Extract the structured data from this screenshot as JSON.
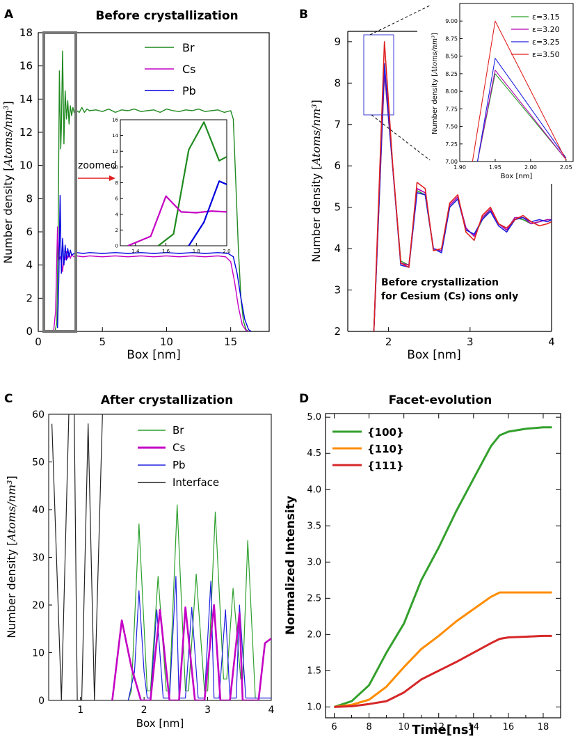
{
  "chart_data": [
    {
      "panel": "A",
      "type": "line",
      "title": "Before crystallization",
      "xlabel": "Box [nm]",
      "ylabel": "Number density [Atoms/nm³]",
      "xlim": [
        0,
        18
      ],
      "ylim": [
        0,
        18
      ],
      "xticks": [
        0,
        5,
        10,
        15
      ],
      "yticks": [
        0,
        2,
        4,
        6,
        8,
        10,
        12,
        14,
        16,
        18
      ],
      "legend": "top-center",
      "series": [
        {
          "name": "Br",
          "color": "#1f8a1f",
          "x": [
            1.3,
            1.45,
            1.55,
            1.65,
            1.75,
            1.8,
            1.9,
            2.0,
            2.1,
            2.2,
            2.3,
            2.4,
            2.5,
            2.6,
            2.7,
            2.8,
            2.9,
            3.0,
            3.2,
            3.4,
            3.6,
            3.8,
            4,
            4.5,
            5,
            5.5,
            6,
            6.5,
            7,
            7.5,
            8,
            8.5,
            9,
            9.5,
            10,
            10.5,
            11,
            11.5,
            12,
            12.5,
            13,
            13.5,
            14,
            14.5,
            15,
            15.2,
            15.4,
            15.6,
            15.8,
            16.0,
            16.2,
            16.4
          ],
          "y": [
            0,
            0.5,
            6.0,
            15.7,
            11.0,
            12.2,
            16.9,
            11.3,
            14.5,
            12.8,
            13.9,
            12.5,
            13.6,
            13.0,
            13.5,
            13.2,
            13.4,
            13.3,
            13.2,
            13.5,
            13.2,
            13.4,
            13.3,
            13.35,
            13.25,
            13.4,
            13.2,
            13.35,
            13.3,
            13.4,
            13.25,
            13.3,
            13.35,
            13.2,
            13.4,
            13.3,
            13.25,
            13.35,
            13.3,
            13.4,
            13.25,
            13.3,
            13.35,
            13.2,
            13.3,
            12.8,
            9.0,
            5.0,
            2.0,
            0.6,
            0.1,
            0
          ]
        },
        {
          "name": "Cs",
          "color": "#c400c4",
          "x": [
            1.2,
            1.35,
            1.5,
            1.6,
            1.7,
            1.8,
            1.9,
            2.0,
            2.1,
            2.2,
            2.3,
            2.4,
            2.5,
            2.6,
            2.8,
            3.0,
            3.5,
            4,
            5,
            6,
            7,
            8,
            9,
            10,
            11,
            12,
            13,
            14,
            14.6,
            15.0,
            15.3,
            15.6,
            15.9,
            16.2,
            16.4
          ],
          "y": [
            0,
            1.2,
            6.3,
            4.3,
            4.5,
            4.2,
            3.6,
            4.5,
            4.3,
            4.8,
            4.4,
            4.7,
            4.4,
            4.6,
            4.5,
            4.55,
            4.5,
            4.55,
            4.5,
            4.55,
            4.5,
            4.55,
            4.5,
            4.55,
            4.5,
            4.55,
            4.5,
            4.55,
            4.5,
            4.2,
            3.0,
            1.5,
            0.4,
            0.05,
            0
          ]
        },
        {
          "name": "Pb",
          "color": "#0000e0",
          "x": [
            1.5,
            1.6,
            1.7,
            1.8,
            1.9,
            2.0,
            2.1,
            2.2,
            2.3,
            2.4,
            2.5,
            2.6,
            2.8,
            3.0,
            3.5,
            4,
            5,
            6,
            7,
            8,
            9,
            10,
            11,
            12,
            13,
            14,
            14.8,
            15.2,
            15.5,
            15.8,
            16.1,
            16.4,
            16.6
          ],
          "y": [
            0.2,
            3.0,
            8.2,
            3.5,
            5.6,
            4.0,
            5.2,
            4.3,
            5.0,
            4.5,
            4.9,
            4.6,
            4.7,
            4.75,
            4.7,
            4.75,
            4.7,
            4.75,
            4.7,
            4.75,
            4.7,
            4.75,
            4.7,
            4.75,
            4.7,
            4.75,
            4.7,
            4.5,
            3.5,
            2.0,
            0.7,
            0.1,
            0
          ]
        }
      ],
      "annotation": "zoomed",
      "inset": {
        "xlim": [
          1.3,
          2.0
        ],
        "ylim": [
          0,
          16
        ],
        "xticks": [
          "1.4",
          "1.6",
          "1.8",
          "2.0"
        ],
        "yticks": [
          "0",
          "2",
          "4",
          "6",
          "8",
          "10",
          "12",
          "14",
          "16"
        ],
        "series": [
          {
            "name": "Br",
            "color": "#1f8a1f",
            "x": [
              1.55,
              1.65,
              1.75,
              1.85,
              1.95,
              2.0
            ],
            "y": [
              0,
              1.5,
              12.2,
              15.7,
              10.8,
              11.3
            ]
          },
          {
            "name": "Cs",
            "color": "#c400c4",
            "x": [
              1.35,
              1.5,
              1.6,
              1.7,
              1.8,
              1.9,
              2.0
            ],
            "y": [
              0,
              1.2,
              6.3,
              4.3,
              4.2,
              4.4,
              4.3
            ]
          },
          {
            "name": "Pb",
            "color": "#0000e0",
            "x": [
              1.75,
              1.85,
              1.95,
              2.0
            ],
            "y": [
              0,
              3.0,
              8.2,
              7.8
            ]
          }
        ]
      }
    },
    {
      "panel": "B",
      "type": "line",
      "title": "",
      "xlabel": "Box [nm]",
      "ylabel": "Number density [Atoms/nm³]",
      "xlim": [
        1.5,
        4
      ],
      "ylim": [
        2,
        9.25
      ],
      "xticks": [
        2,
        3,
        4
      ],
      "yticks": [
        2,
        3,
        4,
        5,
        6,
        7,
        8,
        9
      ],
      "annotation": "Before crystallization\nfor Cesium (Cs) ions only",
      "series": [
        {
          "name": "ε=3.15",
          "color": "#2ca02c",
          "x": [
            1.82,
            1.95,
            2.05,
            2.15,
            2.25,
            2.35,
            2.45,
            2.55,
            2.65,
            2.75,
            2.85,
            2.95,
            3.05,
            3.15,
            3.25,
            3.35,
            3.45,
            3.55,
            3.65,
            3.75,
            3.85,
            3.95,
            4.0
          ],
          "y": [
            2.0,
            8.25,
            6.0,
            3.7,
            3.6,
            5.4,
            5.3,
            4.0,
            3.95,
            5.0,
            5.2,
            4.5,
            4.3,
            4.7,
            4.95,
            4.6,
            4.45,
            4.75,
            4.7,
            4.6,
            4.65,
            4.7,
            4.7
          ]
        },
        {
          "name": "ε=3.20",
          "color": "#b000b0",
          "x": [
            1.82,
            1.95,
            2.05,
            2.15,
            2.25,
            2.35,
            2.45,
            2.55,
            2.65,
            2.75,
            2.85,
            2.95,
            3.05,
            3.15,
            3.25,
            3.35,
            3.45,
            3.55,
            3.65,
            3.75,
            3.85,
            3.95,
            4.0
          ],
          "y": [
            2.0,
            8.3,
            6.0,
            3.65,
            3.6,
            5.45,
            5.35,
            4.0,
            3.95,
            5.05,
            5.25,
            4.5,
            4.3,
            4.75,
            4.95,
            4.6,
            4.45,
            4.75,
            4.75,
            4.6,
            4.65,
            4.7,
            4.7
          ]
        },
        {
          "name": "ε=3.25",
          "color": "#2020e0",
          "x": [
            1.82,
            1.95,
            2.05,
            2.15,
            2.25,
            2.35,
            2.45,
            2.55,
            2.65,
            2.75,
            2.85,
            2.95,
            3.05,
            3.15,
            3.25,
            3.35,
            3.45,
            3.55,
            3.65,
            3.75,
            3.85,
            3.95,
            4.0
          ],
          "y": [
            2.0,
            8.47,
            6.0,
            3.6,
            3.55,
            5.35,
            5.3,
            4.0,
            3.9,
            5.0,
            5.2,
            4.45,
            4.35,
            4.7,
            4.9,
            4.55,
            4.4,
            4.7,
            4.75,
            4.65,
            4.7,
            4.65,
            4.7
          ]
        },
        {
          "name": "ε=3.50",
          "color": "#e02020",
          "x": [
            1.82,
            1.95,
            2.05,
            2.15,
            2.25,
            2.35,
            2.45,
            2.55,
            2.65,
            2.75,
            2.85,
            2.95,
            3.05,
            3.15,
            3.25,
            3.35,
            3.45,
            3.55,
            3.65,
            3.75,
            3.85,
            3.95,
            4.0
          ],
          "y": [
            2.0,
            9.0,
            6.05,
            3.65,
            3.55,
            5.6,
            5.45,
            3.95,
            4.0,
            5.1,
            5.3,
            4.4,
            4.2,
            4.8,
            5.0,
            4.6,
            4.5,
            4.7,
            4.8,
            4.65,
            4.55,
            4.6,
            4.65
          ]
        }
      ],
      "inset": {
        "xlim": [
          1.9,
          2.06
        ],
        "ylim": [
          7.0,
          9.25
        ],
        "xlabel": "Box [nm]",
        "ylabel": "Number density [Atoms/nm³]",
        "xticks": [
          "1.90",
          "1.95",
          "2.00",
          "2.05"
        ],
        "yticks": [
          "7.00",
          "7.25",
          "7.50",
          "7.75",
          "8.00",
          "8.25",
          "8.50",
          "8.75",
          "9.00"
        ],
        "legend": "top-right",
        "series": [
          {
            "name": "ε=3.15",
            "color": "#2ca02c",
            "x": [
              1.925,
              1.95,
              2.05
            ],
            "y": [
              7.0,
              8.25,
              7.03
            ]
          },
          {
            "name": "ε=3.20",
            "color": "#b000b0",
            "x": [
              1.925,
              1.95,
              2.05
            ],
            "y": [
              7.0,
              8.3,
              7.03
            ]
          },
          {
            "name": "ε=3.25",
            "color": "#2020e0",
            "x": [
              1.925,
              1.95,
              2.05
            ],
            "y": [
              7.0,
              8.47,
              7.05
            ]
          },
          {
            "name": "ε=3.50",
            "color": "#e02020",
            "x": [
              1.918,
              1.95,
              2.05
            ],
            "y": [
              7.0,
              9.0,
              7.02
            ]
          }
        ]
      }
    },
    {
      "panel": "C",
      "type": "line",
      "title": "After crystallization",
      "xlabel": "Box [nm]",
      "ylabel": "Number density [Atoms/nm³]",
      "xlim": [
        0.5,
        4
      ],
      "ylim": [
        0,
        60
      ],
      "xticks": [
        1,
        2,
        3,
        4
      ],
      "yticks": [
        0,
        10,
        20,
        30,
        40,
        50,
        60
      ],
      "legend": "top-right",
      "series": [
        {
          "name": "Br",
          "color": "#2ca02c",
          "x": [
            1.75,
            1.8,
            1.92,
            2.05,
            2.1,
            2.22,
            2.35,
            2.4,
            2.52,
            2.65,
            2.7,
            2.82,
            2.95,
            3.0,
            3.12,
            3.25,
            3.3,
            3.4,
            3.52,
            3.55,
            3.63,
            3.75,
            3.8,
            3.9,
            4.0
          ],
          "y": [
            0,
            2,
            37,
            2,
            2,
            26,
            2,
            2,
            41,
            2,
            2,
            26.5,
            2,
            2,
            39.5,
            4.5,
            4.5,
            23.5,
            4.5,
            4.5,
            33.5,
            0.5,
            0.5,
            12,
            13
          ]
        },
        {
          "name": "Cs",
          "color": "#c400c4",
          "x": [
            1.5,
            1.65,
            1.8,
            1.95,
            2.05,
            2.1,
            2.25,
            2.4,
            2.5,
            2.55,
            2.65,
            2.8,
            2.85,
            2.95,
            3.1,
            3.2,
            3.25,
            3.35,
            3.5,
            3.55,
            3.65,
            3.8,
            3.9,
            4.0
          ],
          "y": [
            0,
            16.8,
            7,
            0,
            0,
            0,
            19,
            0,
            0,
            0,
            19.5,
            0,
            0,
            0,
            20,
            0,
            0,
            0,
            18.3,
            0,
            0,
            0,
            12,
            13
          ]
        },
        {
          "name": "Pb",
          "color": "#2020e0",
          "x": [
            1.75,
            1.85,
            1.92,
            2.0,
            2.05,
            2.1,
            2.2,
            2.3,
            2.4,
            2.5,
            2.55,
            2.65,
            2.75,
            2.85,
            2.95,
            3.05,
            3.1,
            3.18,
            3.28,
            3.35,
            3.45,
            3.5,
            3.6,
            3.7,
            3.75,
            3.85,
            4.0
          ],
          "y": [
            0,
            6,
            23,
            6,
            0.5,
            0.5,
            19,
            0.5,
            0.5,
            26,
            0.5,
            0.5,
            19.5,
            0.5,
            0.5,
            25,
            0.5,
            0.5,
            19,
            0.5,
            0.5,
            20,
            0.5,
            0.5,
            0.5,
            0.5,
            0.5
          ]
        },
        {
          "name": "Interface",
          "color": "#222222",
          "x": [
            0.55,
            0.7,
            0.82,
            0.9,
            0.95,
            1.02,
            1.12,
            1.22,
            1.35,
            1.45
          ],
          "y": [
            58,
            0,
            62,
            62,
            0,
            0,
            58,
            0,
            62,
            62
          ]
        }
      ]
    },
    {
      "panel": "D",
      "type": "line",
      "title": "Facet-evolution",
      "xlabel": "Time[ns]",
      "ylabel": "Normalized Intensity",
      "xlim": [
        5.5,
        19
      ],
      "ylim": [
        0.85,
        5.05
      ],
      "xticks": [
        6,
        8,
        10,
        12,
        14,
        16,
        18
      ],
      "yticks": [
        1.0,
        1.5,
        2.0,
        2.5,
        3.0,
        3.5,
        4.0,
        4.5,
        5.0
      ],
      "legend": "top-left",
      "series": [
        {
          "name": "{100}",
          "color": "#33a02c",
          "x": [
            6,
            7,
            8,
            9,
            10,
            11,
            12,
            13,
            14,
            15,
            15.5,
            16,
            17,
            18,
            18.5
          ],
          "y": [
            1.0,
            1.08,
            1.3,
            1.75,
            2.15,
            2.75,
            3.2,
            3.7,
            4.15,
            4.6,
            4.75,
            4.8,
            4.84,
            4.86,
            4.86
          ]
        },
        {
          "name": "{110}",
          "color": "#ff8c00",
          "x": [
            6,
            7,
            8,
            9,
            10,
            11,
            12,
            13,
            14,
            15,
            15.5,
            16,
            17,
            18,
            18.5
          ],
          "y": [
            1.0,
            1.03,
            1.1,
            1.28,
            1.55,
            1.8,
            1.98,
            2.18,
            2.35,
            2.52,
            2.58,
            2.58,
            2.58,
            2.58,
            2.58
          ]
        },
        {
          "name": "{111}",
          "color": "#d62728",
          "x": [
            6,
            7,
            8,
            9,
            10,
            11,
            12,
            13,
            14,
            15,
            15.5,
            16,
            17,
            18,
            18.5
          ],
          "y": [
            1.0,
            1.01,
            1.04,
            1.08,
            1.2,
            1.38,
            1.5,
            1.62,
            1.75,
            1.88,
            1.94,
            1.96,
            1.97,
            1.98,
            1.98
          ]
        }
      ]
    }
  ],
  "labels": {
    "panel_a": "A",
    "panel_b": "B",
    "panel_c": "C",
    "panel_d": "D",
    "zoomed": "zoomed",
    "b_note_line1": "Before crystallization",
    "b_note_line2": "for Cesium (Cs) ions only"
  }
}
